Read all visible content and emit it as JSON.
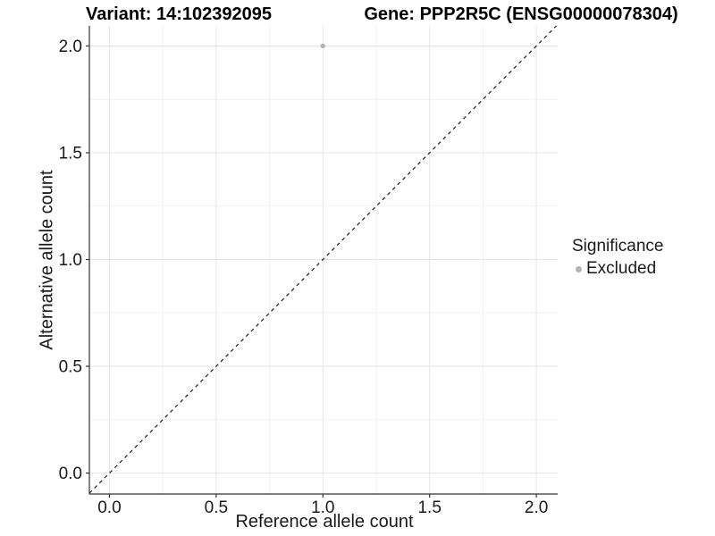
{
  "colors": {
    "background": "#ffffff",
    "axis_line": "#333333",
    "tick_mark": "#333333",
    "grid_major": "#e6e6e6",
    "grid_minor": "#f2f2f2",
    "text": "#1a1a1a",
    "point": "#b4b4b4",
    "reference_line": "#1a1a1a"
  },
  "chart_data": {
    "type": "scatter",
    "title_left": "Variant: 14:102392095",
    "title_right": "Gene: PPP2R5C (ENSG00000078304)",
    "xlabel": "Reference allele count",
    "ylabel": "Alternative allele count",
    "xlim": [
      -0.094,
      2.1
    ],
    "ylim": [
      -0.098,
      2.094
    ],
    "xticks": [
      0,
      0.5,
      1,
      1.5,
      2
    ],
    "yticks": [
      0,
      0.5,
      1,
      1.5,
      2
    ],
    "xtick_labels": [
      "0.0",
      "0.5",
      "1.0",
      "1.5",
      "2.0"
    ],
    "ytick_labels": [
      "0.0",
      "0.5",
      "1.0",
      "1.5",
      "2.0"
    ],
    "grid": "major and minor gridlines, white panel, open top/right",
    "series": [
      {
        "name": "Excluded",
        "color": "#b4b4b4",
        "points": [
          {
            "x": 1.0,
            "y": 2.0
          }
        ]
      }
    ],
    "reference_line": {
      "kind": "identity y=x",
      "linetype": "dashed",
      "color": "#1a1a1a"
    },
    "legend": {
      "title": "Significance",
      "position": "right",
      "items": [
        {
          "label": "Excluded",
          "color": "#b4b4b4",
          "marker": "circle"
        }
      ]
    }
  }
}
